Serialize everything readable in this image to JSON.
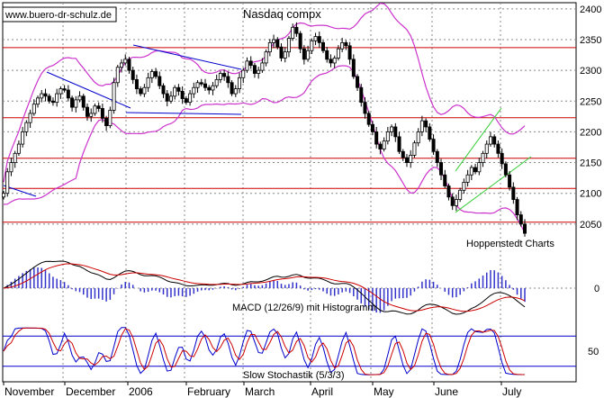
{
  "watermark": "www.buero-dr-schulz.de",
  "credit": "Hoppenstedt Charts",
  "colors": {
    "candle": "#000000",
    "bollinger": "#cc33cc",
    "resistance": "#cc0000",
    "trend_blue": "#0000cc",
    "trend_green": "#33cc33",
    "macd_line": "#000000",
    "signal_line": "#cc0000",
    "histogram": "#3333cc",
    "stoch_k": "#0000cc",
    "stoch_d": "#cc0000",
    "grid": "#888888"
  },
  "chart_data": [
    {
      "type": "candlestick",
      "title": "Nasdaq compx",
      "ylim": [
        2000,
        2410
      ],
      "y_ticks": [
        2050,
        2100,
        2150,
        2200,
        2250,
        2300,
        2350,
        2400
      ],
      "x_labels": [
        "November",
        "December",
        "2006",
        "February",
        "March",
        "April",
        "May",
        "June",
        "July"
      ],
      "horizontal_levels": [
        2337,
        2223,
        2157,
        2108,
        2053
      ],
      "grid": true,
      "approx_close": [
        2100,
        2135,
        2150,
        2165,
        2180,
        2200,
        2215,
        2230,
        2245,
        2255,
        2262,
        2258,
        2250,
        2248,
        2262,
        2270,
        2268,
        2255,
        2240,
        2252,
        2258,
        2240,
        2225,
        2230,
        2242,
        2238,
        2222,
        2210,
        2235,
        2280,
        2305,
        2312,
        2318,
        2300,
        2285,
        2270,
        2262,
        2272,
        2288,
        2298,
        2290,
        2275,
        2262,
        2250,
        2258,
        2272,
        2266,
        2254,
        2248,
        2262,
        2272,
        2280,
        2278,
        2272,
        2268,
        2275,
        2285,
        2295,
        2290,
        2280,
        2262,
        2270,
        2288,
        2300,
        2315,
        2308,
        2295,
        2300,
        2312,
        2330,
        2345,
        2350,
        2338,
        2320,
        2330,
        2352,
        2370,
        2360,
        2335,
        2318,
        2332,
        2348,
        2355,
        2345,
        2332,
        2318,
        2312,
        2320,
        2335,
        2345,
        2340,
        2318,
        2290,
        2272,
        2248,
        2230,
        2212,
        2200,
        2180,
        2172,
        2185,
        2200,
        2208,
        2192,
        2168,
        2158,
        2150,
        2162,
        2182,
        2200,
        2218,
        2208,
        2188,
        2168,
        2150,
        2130,
        2112,
        2094,
        2080,
        2090,
        2105,
        2118,
        2130,
        2142,
        2135,
        2150,
        2165,
        2180,
        2192,
        2180,
        2165,
        2148,
        2130,
        2110,
        2090,
        2065,
        2050,
        2035
      ]
    },
    {
      "type": "bar",
      "subtype": "macd_histogram",
      "label": "MACD (12/26/9) mit Histogramm",
      "y_ticks": [
        0
      ]
    },
    {
      "type": "line",
      "subtype": "slow_stochastic",
      "label": "Slow Stochastik (5/3/3)",
      "y_ticks": [
        50
      ],
      "levels": [
        80,
        20
      ]
    }
  ]
}
